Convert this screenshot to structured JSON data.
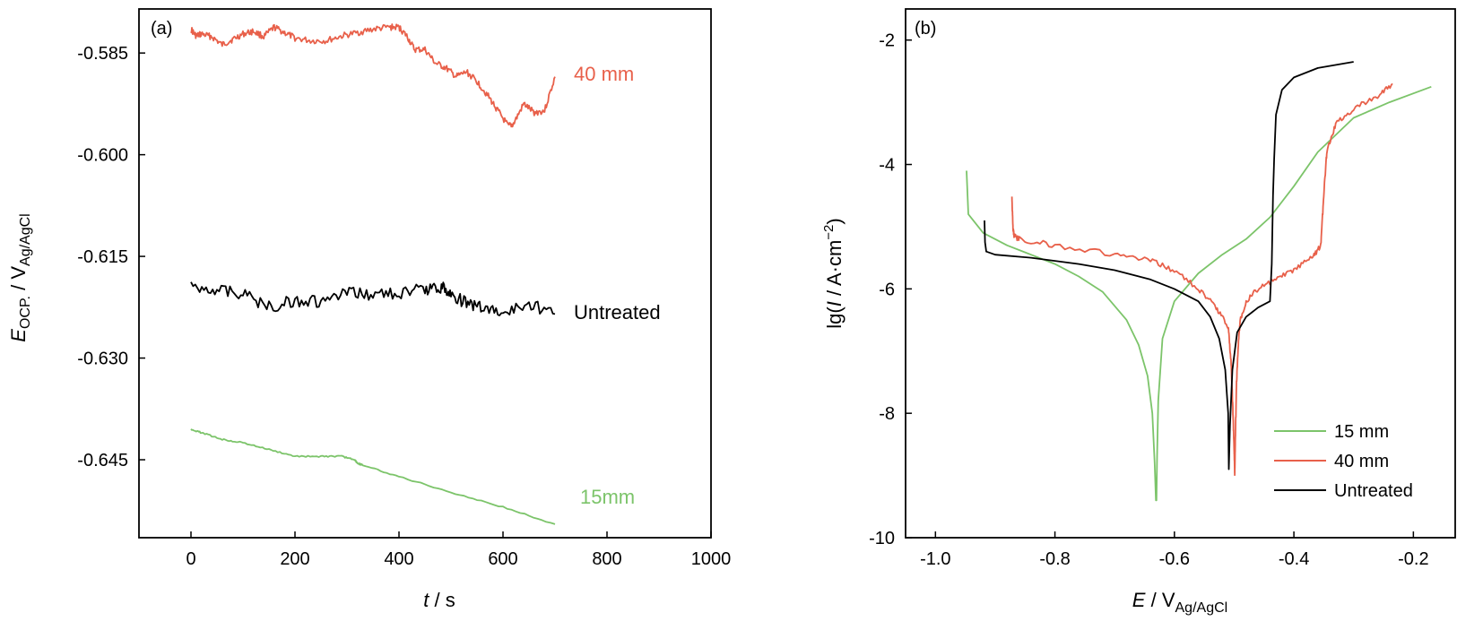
{
  "colors": {
    "green": "#7cc46a",
    "red": "#e8604a",
    "black": "#000000"
  },
  "chart_data": [
    {
      "type": "line",
      "panel_label": "(a)",
      "xlabel_italic": "t",
      "xlabel_rest": " / s",
      "ylabel_italic": "E",
      "ylabel_sub1": "OCP.",
      "ylabel_mid": " / V",
      "ylabel_sub2": "Ag/AgCl",
      "xlim": [
        -100,
        1000
      ],
      "ylim": [
        -0.6565,
        -0.5785
      ],
      "xticks": [
        0,
        200,
        400,
        600,
        800,
        1000
      ],
      "xtick_labels": [
        "0",
        "200",
        "400",
        "600",
        "800",
        "1000"
      ],
      "yticks": [
        -0.585,
        -0.6,
        -0.615,
        -0.63,
        -0.645
      ],
      "ytick_labels": [
        "-0.585",
        "-0.600",
        "-0.615",
        "-0.630",
        "-0.645"
      ],
      "series": [
        {
          "name": "40 mm",
          "color": "#e8604a",
          "x": [
            0,
            10,
            20,
            40,
            60,
            80,
            100,
            120,
            140,
            160,
            180,
            200,
            230,
            260,
            290,
            320,
            350,
            380,
            400,
            415,
            430,
            450,
            470,
            490,
            510,
            530,
            550,
            570,
            590,
            610,
            620,
            640,
            660,
            680,
            700
          ],
          "y": [
            -0.5815,
            -0.5825,
            -0.5822,
            -0.5826,
            -0.5838,
            -0.583,
            -0.5822,
            -0.5818,
            -0.5826,
            -0.5812,
            -0.582,
            -0.5828,
            -0.5832,
            -0.5832,
            -0.5825,
            -0.582,
            -0.5815,
            -0.5812,
            -0.5812,
            -0.5825,
            -0.5845,
            -0.5845,
            -0.5865,
            -0.5872,
            -0.5885,
            -0.5878,
            -0.5892,
            -0.5912,
            -0.5935,
            -0.5958,
            -0.5955,
            -0.5925,
            -0.5938,
            -0.5935,
            -0.5885
          ]
        },
        {
          "name": "Untreated",
          "color": "#000000",
          "x": [
            0,
            50,
            100,
            150,
            200,
            250,
            300,
            350,
            400,
            450,
            480,
            500,
            530,
            560,
            600,
            650,
            700
          ],
          "y": [
            -0.6195,
            -0.6198,
            -0.6205,
            -0.6225,
            -0.6215,
            -0.6218,
            -0.6205,
            -0.6205,
            -0.6205,
            -0.6198,
            -0.6195,
            -0.6205,
            -0.622,
            -0.6225,
            -0.6235,
            -0.622,
            -0.6235
          ]
        },
        {
          "name": "15mm",
          "color": "#7cc46a",
          "x": [
            0,
            20,
            60,
            100,
            150,
            200,
            250,
            290,
            315,
            320,
            330,
            400,
            500,
            600,
            700
          ],
          "y": [
            -0.6405,
            -0.641,
            -0.642,
            -0.6425,
            -0.6435,
            -0.6445,
            -0.6445,
            -0.6445,
            -0.645,
            -0.6455,
            -0.6458,
            -0.6475,
            -0.6498,
            -0.652,
            -0.6545
          ]
        }
      ]
    },
    {
      "type": "line",
      "panel_label": "(b)",
      "xlabel_italic": "E",
      "xlabel_rest": " / V",
      "xlabel_sub": "Ag/AgCl",
      "ylabel_pre": "lg(",
      "ylabel_italic": "I",
      "ylabel_post": " / A·cm",
      "ylabel_sup": "−2",
      "ylabel_close": ")",
      "xlim": [
        -1.05,
        -0.13
      ],
      "ylim": [
        -10,
        -1.5
      ],
      "xticks": [
        -1.0,
        -0.8,
        -0.6,
        -0.4,
        -0.2
      ],
      "xtick_labels": [
        "-1.0",
        "-0.8",
        "-0.6",
        "-0.4",
        "-0.2"
      ],
      "yticks": [
        -2,
        -4,
        -6,
        -8,
        -10
      ],
      "ytick_labels": [
        "-2",
        "-4",
        "-6",
        "-8",
        "-10"
      ],
      "legend_position": "bottom-right",
      "series": [
        {
          "name": "15 mm",
          "color": "#7cc46a",
          "x": [
            -0.948,
            -0.945,
            -0.92,
            -0.88,
            -0.84,
            -0.8,
            -0.76,
            -0.72,
            -0.68,
            -0.66,
            -0.645,
            -0.637,
            -0.633,
            -0.631,
            -0.63,
            -0.629,
            -0.627,
            -0.62,
            -0.6,
            -0.56,
            -0.52,
            -0.48,
            -0.44,
            -0.4,
            -0.36,
            -0.3,
            -0.24,
            -0.17
          ],
          "y": [
            -4.1,
            -4.8,
            -5.1,
            -5.3,
            -5.45,
            -5.6,
            -5.8,
            -6.05,
            -6.5,
            -6.9,
            -7.4,
            -8.0,
            -8.8,
            -9.4,
            -9.4,
            -8.7,
            -7.8,
            -6.8,
            -6.2,
            -5.75,
            -5.45,
            -5.2,
            -4.85,
            -4.35,
            -3.8,
            -3.25,
            -3.0,
            -2.75
          ]
        },
        {
          "name": "40 mm",
          "color": "#e8604a",
          "x": [
            -0.872,
            -0.87,
            -0.868,
            -0.86,
            -0.8,
            -0.7,
            -0.64,
            -0.6,
            -0.56,
            -0.53,
            -0.51,
            -0.505,
            -0.502,
            -0.5,
            -0.499,
            -0.498,
            -0.496,
            -0.493,
            -0.49,
            -0.48,
            -0.46,
            -0.43,
            -0.4,
            -0.37,
            -0.355,
            -0.35,
            -0.345,
            -0.33,
            -0.3,
            -0.26,
            -0.235
          ],
          "y": [
            -4.55,
            -5.05,
            -5.15,
            -5.2,
            -5.3,
            -5.45,
            -5.55,
            -5.7,
            -6.0,
            -6.3,
            -6.6,
            -7.2,
            -8.0,
            -8.6,
            -9.0,
            -8.4,
            -7.5,
            -6.9,
            -6.5,
            -6.2,
            -6.0,
            -5.85,
            -5.7,
            -5.5,
            -5.3,
            -4.5,
            -3.8,
            -3.35,
            -3.1,
            -2.9,
            -2.7
          ]
        },
        {
          "name": "Untreated",
          "color": "#000000",
          "x": [
            -0.918,
            -0.917,
            -0.915,
            -0.9,
            -0.84,
            -0.76,
            -0.7,
            -0.64,
            -0.6,
            -0.56,
            -0.54,
            -0.525,
            -0.515,
            -0.51,
            -0.509,
            -0.507,
            -0.503,
            -0.495,
            -0.48,
            -0.46,
            -0.44,
            -0.437,
            -0.435,
            -0.433,
            -0.43,
            -0.42,
            -0.4,
            -0.36,
            -0.3
          ],
          "y": [
            -4.9,
            -5.25,
            -5.4,
            -5.45,
            -5.5,
            -5.6,
            -5.7,
            -5.85,
            -6.0,
            -6.2,
            -6.45,
            -6.8,
            -7.3,
            -8.0,
            -8.9,
            -8.2,
            -7.3,
            -6.7,
            -6.45,
            -6.3,
            -6.2,
            -5.6,
            -4.5,
            -3.9,
            -3.2,
            -2.8,
            -2.6,
            -2.45,
            -2.35
          ]
        }
      ]
    }
  ]
}
